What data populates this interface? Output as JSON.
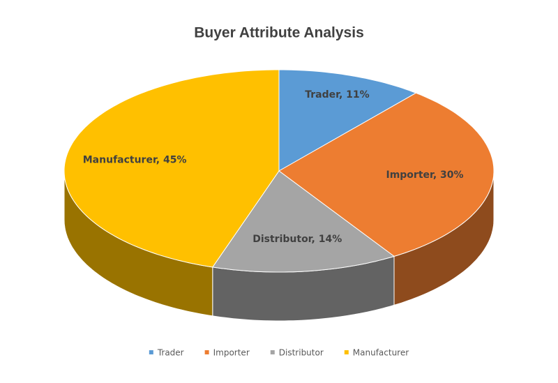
{
  "chart_data": {
    "type": "pie3d",
    "title": "Buyer Attribute Analysis",
    "categories": [
      "Trader",
      "Importer",
      "Distributor",
      "Manufacturer"
    ],
    "values": [
      11,
      30,
      14,
      45
    ],
    "value_labels": [
      "Trader, 11%",
      "Importer, 30%",
      "Distributor, 14%",
      "Manufacturer, 45%"
    ],
    "colors": [
      "#5b9bd5",
      "#ed7d31",
      "#a5a5a5",
      "#ffc000"
    ],
    "legend": "bottom"
  }
}
